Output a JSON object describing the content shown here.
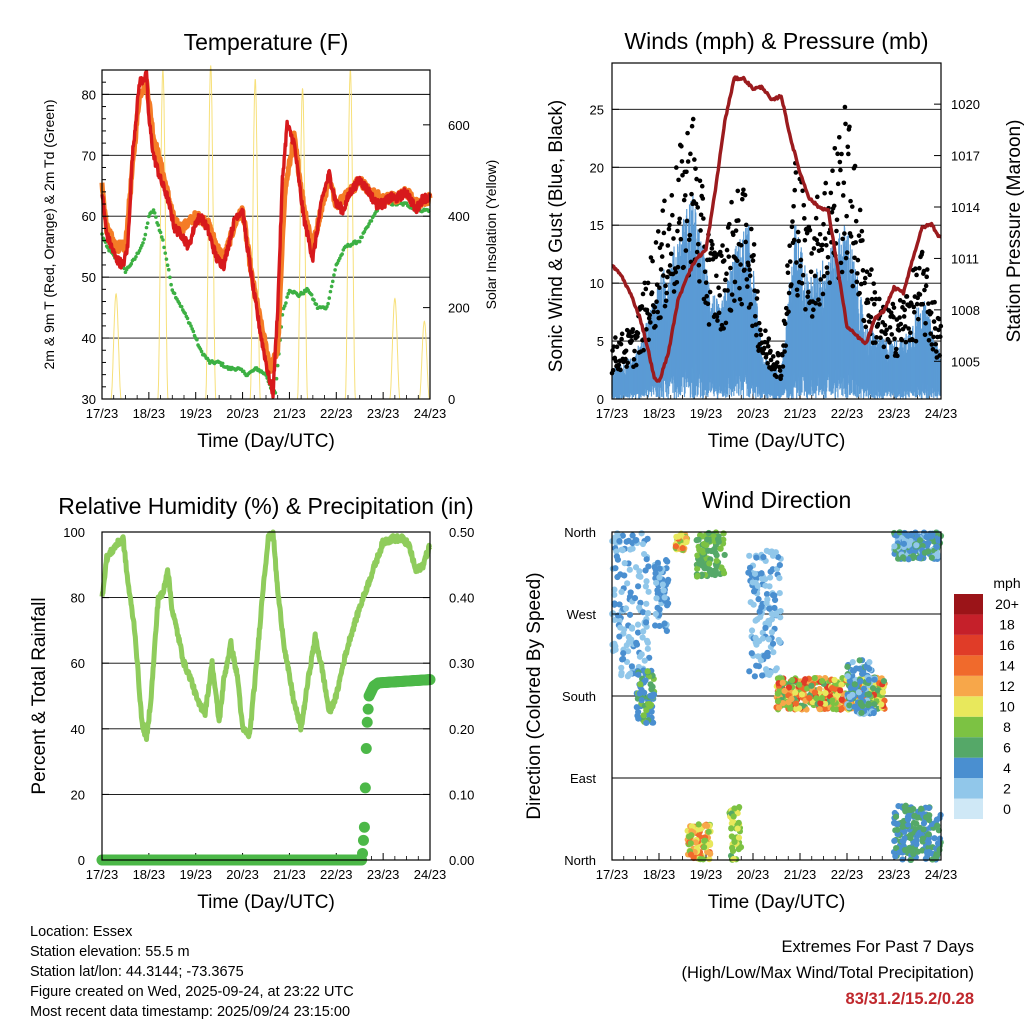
{
  "colors": {
    "temp_2m": "#d7191c",
    "temp_9m": "#f47c26",
    "dewpoint": "#3cb043",
    "solar": "#f7e07a",
    "wind": "#5b9bd5",
    "gust": "#000000",
    "pressure": "#9b1b1e",
    "rh": "#8fcc5c",
    "precip": "#4cb848",
    "extremes": "#c0282d"
  },
  "x_ticks": [
    "17/23",
    "18/23",
    "19/23",
    "20/23",
    "21/23",
    "22/23",
    "23/23",
    "24/23"
  ],
  "chart_data": [
    {
      "id": "temperature",
      "type": "line",
      "title": "Temperature (F)",
      "xlabel": "Time (Day/UTC)",
      "ylabel": "2m & 9m T (Red, Orange) & 2m Td (Green)",
      "y2label": "Solar Insolation (Yellow)",
      "xlim": [
        0,
        7
      ],
      "ylim": [
        30,
        84
      ],
      "yticks": [
        30,
        40,
        50,
        60,
        70,
        80
      ],
      "y2lim": [
        0,
        720
      ],
      "y2ticks": [
        0,
        200,
        400,
        600
      ],
      "series": [
        {
          "name": "2m T",
          "x": [
            0,
            0.1,
            0.2,
            0.3,
            0.45,
            0.55,
            0.65,
            0.8,
            0.95,
            1.0,
            1.1,
            1.25,
            1.4,
            1.55,
            1.7,
            1.85,
            2.0,
            2.1,
            2.25,
            2.45,
            2.6,
            2.75,
            2.85,
            3.0,
            3.1,
            3.25,
            3.4,
            3.5,
            3.55,
            3.65,
            3.75,
            3.85,
            3.95,
            4.1,
            4.3,
            4.5,
            4.7,
            4.85,
            5.0,
            5.15,
            5.3,
            5.5,
            5.7,
            5.85,
            6.0,
            6.15,
            6.3,
            6.5,
            6.7,
            6.85,
            7.0
          ],
          "values": [
            64,
            57,
            55,
            53,
            52,
            55,
            70,
            82,
            83,
            76,
            70,
            66,
            63,
            58,
            57,
            55,
            59,
            60,
            58,
            53,
            52,
            57,
            60,
            61,
            55,
            47,
            40,
            36,
            34,
            31,
            45,
            66,
            75,
            72,
            60,
            53,
            63,
            67,
            62,
            61,
            64,
            66,
            64,
            62,
            62,
            63,
            63,
            64,
            61,
            63,
            63
          ]
        },
        {
          "name": "9m T",
          "x": [
            0,
            0.1,
            0.3,
            0.5,
            0.65,
            0.8,
            0.95,
            1.1,
            1.3,
            1.55,
            1.7,
            2.0,
            2.25,
            2.45,
            2.6,
            2.85,
            3.0,
            3.2,
            3.4,
            3.6,
            3.75,
            3.9,
            4.1,
            4.3,
            4.5,
            4.7,
            4.85,
            5.0,
            5.3,
            5.5,
            5.7,
            6.0,
            6.3,
            6.5,
            6.7,
            7.0
          ],
          "values": [
            65,
            58,
            55,
            55,
            68,
            80,
            82,
            73,
            67,
            59,
            58,
            60,
            59,
            55,
            53,
            59,
            61,
            50,
            42,
            35,
            38,
            64,
            73,
            62,
            55,
            62,
            66,
            62,
            64,
            66,
            64,
            63,
            63,
            64,
            62,
            63
          ]
        },
        {
          "name": "2m Td",
          "x": [
            0,
            0.1,
            0.3,
            0.5,
            0.7,
            0.9,
            1.0,
            1.1,
            1.3,
            1.5,
            1.7,
            1.9,
            2.1,
            2.3,
            2.5,
            2.7,
            2.9,
            3.1,
            3.3,
            3.5,
            3.6,
            3.7,
            3.85,
            4.0,
            4.2,
            4.4,
            4.6,
            4.8,
            5.0,
            5.2,
            5.5,
            5.8,
            6.0,
            6.2,
            6.5,
            6.7,
            6.85,
            7.0
          ],
          "values": [
            57,
            55,
            53,
            51,
            53,
            56,
            60,
            61,
            56,
            48,
            45,
            42,
            38,
            36,
            36,
            35,
            35,
            34,
            35,
            34,
            32,
            31,
            44,
            48,
            47,
            48,
            45,
            45,
            52,
            55,
            56,
            60,
            63,
            62,
            62,
            61,
            61,
            61
          ]
        },
        {
          "name": "Solar insolation",
          "axis": "y2",
          "peaks_x": [
            0.3,
            1.3,
            2.32,
            3.27,
            4.28,
            5.3,
            6.25,
            6.88
          ],
          "peaks": [
            230,
            720,
            730,
            700,
            680,
            720,
            220,
            170
          ]
        }
      ]
    },
    {
      "id": "winds",
      "type": "scatter",
      "title": "Winds (mph) & Pressure (mb)",
      "xlabel": "Time (Day/UTC)",
      "ylabel": "Sonic Wind & Gust (Blue, Black)",
      "y2label": "Station Pressure (Maroon)",
      "xlim": [
        0,
        7
      ],
      "ylim": [
        0,
        29
      ],
      "yticks": [
        0,
        5,
        10,
        15,
        20,
        25
      ],
      "y2lim": [
        1002.8,
        1022.4
      ],
      "y2ticks": [
        1005,
        1008,
        1011,
        1014,
        1017,
        1020
      ],
      "series": [
        {
          "name": "Wind envelope",
          "x": [
            0,
            0.5,
            1.0,
            1.3,
            1.7,
            2.0,
            2.3,
            2.6,
            2.9,
            3.2,
            3.6,
            3.9,
            4.2,
            4.6,
            5.0,
            5.4,
            5.8,
            6.2,
            6.6,
            7.0
          ],
          "values": [
            2,
            3,
            8,
            10,
            14,
            9,
            6,
            10,
            12,
            3,
            2,
            12,
            8,
            10,
            12,
            5,
            4,
            4,
            7,
            3
          ]
        },
        {
          "name": "Gust envelope",
          "x": [
            0,
            0.5,
            1.0,
            1.3,
            1.7,
            2.0,
            2.3,
            2.6,
            2.9,
            3.2,
            3.6,
            3.9,
            4.2,
            4.6,
            5.0,
            5.4,
            5.8,
            6.2,
            6.6,
            7.0
          ],
          "values": [
            4,
            5,
            12,
            15,
            20,
            12,
            10,
            14,
            14,
            5,
            3,
            17,
            12,
            16,
            20,
            10,
            6,
            7,
            10,
            5
          ]
        },
        {
          "name": "Station pressure",
          "x": [
            0,
            0.2,
            0.4,
            0.6,
            0.8,
            0.9,
            1.0,
            1.2,
            1.4,
            1.6,
            1.8,
            2.0,
            2.2,
            2.4,
            2.6,
            2.8,
            3.0,
            3.2,
            3.4,
            3.6,
            3.8,
            4.0,
            4.2,
            4.4,
            4.6,
            4.8,
            5.0,
            5.2,
            5.4,
            5.6,
            5.8,
            6.0,
            6.2,
            6.4,
            6.6,
            6.8,
            6.95,
            7.0
          ],
          "values": [
            1010.6,
            1010.0,
            1008.9,
            1007.5,
            1005.3,
            1004.0,
            1003.8,
            1005.5,
            1008.5,
            1010.0,
            1011.0,
            1011.5,
            1015.0,
            1019.0,
            1021.5,
            1021.5,
            1020.9,
            1021.0,
            1020.2,
            1020.5,
            1018.0,
            1016.0,
            1014.5,
            1014.0,
            1013.8,
            1010.5,
            1007.0,
            1006.5,
            1006.0,
            1007.5,
            1008.0,
            1009.3,
            1009.0,
            1011.0,
            1012.8,
            1013.0,
            1012.3,
            1012.2
          ]
        }
      ]
    },
    {
      "id": "humidity",
      "type": "line",
      "title": "Relative Humidity (%) & Precipitation (in)",
      "xlabel": "Time (Day/UTC)",
      "ylabel": "Percent & Total Rainfall",
      "xlim": [
        0,
        7
      ],
      "ylim": [
        0,
        100
      ],
      "yticks": [
        0,
        20,
        40,
        60,
        80,
        100
      ],
      "y2lim": [
        0,
        0.5
      ],
      "y2ticks": [
        "0.00",
        "0.10",
        "0.20",
        "0.30",
        "0.40",
        "0.50"
      ],
      "series": [
        {
          "name": "RH",
          "x": [
            0,
            0.1,
            0.2,
            0.3,
            0.45,
            0.55,
            0.7,
            0.85,
            0.95,
            1.05,
            1.2,
            1.3,
            1.4,
            1.5,
            1.6,
            1.75,
            1.9,
            2.05,
            2.2,
            2.35,
            2.5,
            2.6,
            2.75,
            2.9,
            3.0,
            3.15,
            3.3,
            3.45,
            3.55,
            3.65,
            3.75,
            3.9,
            4.1,
            4.25,
            4.4,
            4.55,
            4.7,
            4.85,
            5.0,
            5.15,
            5.3,
            5.5,
            5.7,
            5.9,
            6.0,
            6.2,
            6.4,
            6.55,
            6.7,
            6.85,
            7.0
          ],
          "values": [
            80,
            92,
            94,
            96,
            98,
            85,
            70,
            42,
            37,
            50,
            80,
            81,
            89,
            76,
            70,
            60,
            55,
            48,
            45,
            60,
            42,
            55,
            66,
            55,
            40,
            38,
            60,
            85,
            98,
            100,
            82,
            64,
            48,
            40,
            55,
            68,
            58,
            45,
            50,
            60,
            68,
            77,
            85,
            93,
            97,
            98,
            98,
            96,
            88,
            90,
            96
          ]
        },
        {
          "name": "Total precipitation",
          "axis": "y2",
          "x": [
            0,
            5.55,
            5.6,
            5.65,
            5.7,
            5.8,
            5.9,
            7.0
          ],
          "values": [
            0,
            0,
            0.05,
            0.2,
            0.25,
            0.265,
            0.27,
            0.275
          ]
        }
      ]
    },
    {
      "id": "direction",
      "type": "scatter",
      "title": "Wind Direction",
      "xlabel": "Time (Day/UTC)",
      "ylabel": "Direction (Colored By Speed)",
      "xlim": [
        0,
        7
      ],
      "ylim": [
        0,
        360
      ],
      "ytick_labels": [
        "North",
        "East",
        "South",
        "West",
        "North"
      ],
      "ytick_values": [
        0,
        90,
        180,
        270,
        360
      ],
      "colorbar_title": "mph",
      "colorbar_labels": [
        "0",
        "2",
        "4",
        "6",
        "8",
        "10",
        "12",
        "14",
        "16",
        "18",
        "20+"
      ],
      "colorbar_colors": [
        "#cfe8f6",
        "#91c7ea",
        "#4a8fd0",
        "#55a868",
        "#7cc243",
        "#e8e85c",
        "#f7a74a",
        "#f06a2c",
        "#e03c28",
        "#c5202a",
        "#9b1418"
      ],
      "clusters": [
        {
          "x": [
            0.0,
            0.8
          ],
          "dir": [
            200,
            360
          ],
          "speed": [
            1,
            4
          ]
        },
        {
          "x": [
            0.5,
            0.9
          ],
          "dir": [
            150,
            210
          ],
          "speed": [
            3,
            8
          ]
        },
        {
          "x": [
            0.9,
            1.2
          ],
          "dir": [
            250,
            330
          ],
          "speed": [
            2,
            5
          ]
        },
        {
          "x": [
            1.35,
            1.6
          ],
          "dir": [
            340,
            360
          ],
          "speed": [
            8,
            14
          ]
        },
        {
          "x": [
            1.8,
            2.4
          ],
          "dir": [
            310,
            360
          ],
          "speed": [
            5,
            9
          ]
        },
        {
          "x": [
            1.6,
            2.1
          ],
          "dir": [
            0,
            40
          ],
          "speed": [
            7,
            15
          ]
        },
        {
          "x": [
            2.5,
            2.75
          ],
          "dir": [
            0,
            60
          ],
          "speed": [
            6,
            11
          ]
        },
        {
          "x": [
            2.9,
            3.6
          ],
          "dir": [
            200,
            340
          ],
          "speed": [
            1,
            4
          ]
        },
        {
          "x": [
            3.5,
            5.8
          ],
          "dir": [
            165,
            200
          ],
          "speed": [
            6,
            16
          ]
        },
        {
          "x": [
            5.0,
            5.6
          ],
          "dir": [
            160,
            220
          ],
          "speed": [
            2,
            6
          ]
        },
        {
          "x": [
            6.0,
            7.0
          ],
          "dir": [
            330,
            360
          ],
          "speed": [
            2,
            6
          ]
        },
        {
          "x": [
            6.0,
            7.0
          ],
          "dir": [
            0,
            60
          ],
          "speed": [
            3,
            7
          ]
        }
      ]
    }
  ],
  "info": {
    "location": "Location: Essex",
    "elevation": "Station elevation: 55.5 m",
    "latlon": "Station lat/lon: 44.3144; -73.3675",
    "created": "Figure created on Wed, 2025-09-24, at 23:22 UTC",
    "recent": "Most recent data timestamp: 2025/09/24 23:15:00"
  },
  "extremes": {
    "title": "Extremes For Past 7 Days",
    "subtitle": "(High/Low/Max Wind/Total Precipitation)",
    "values": "83/31.2/15.2/0.28"
  }
}
